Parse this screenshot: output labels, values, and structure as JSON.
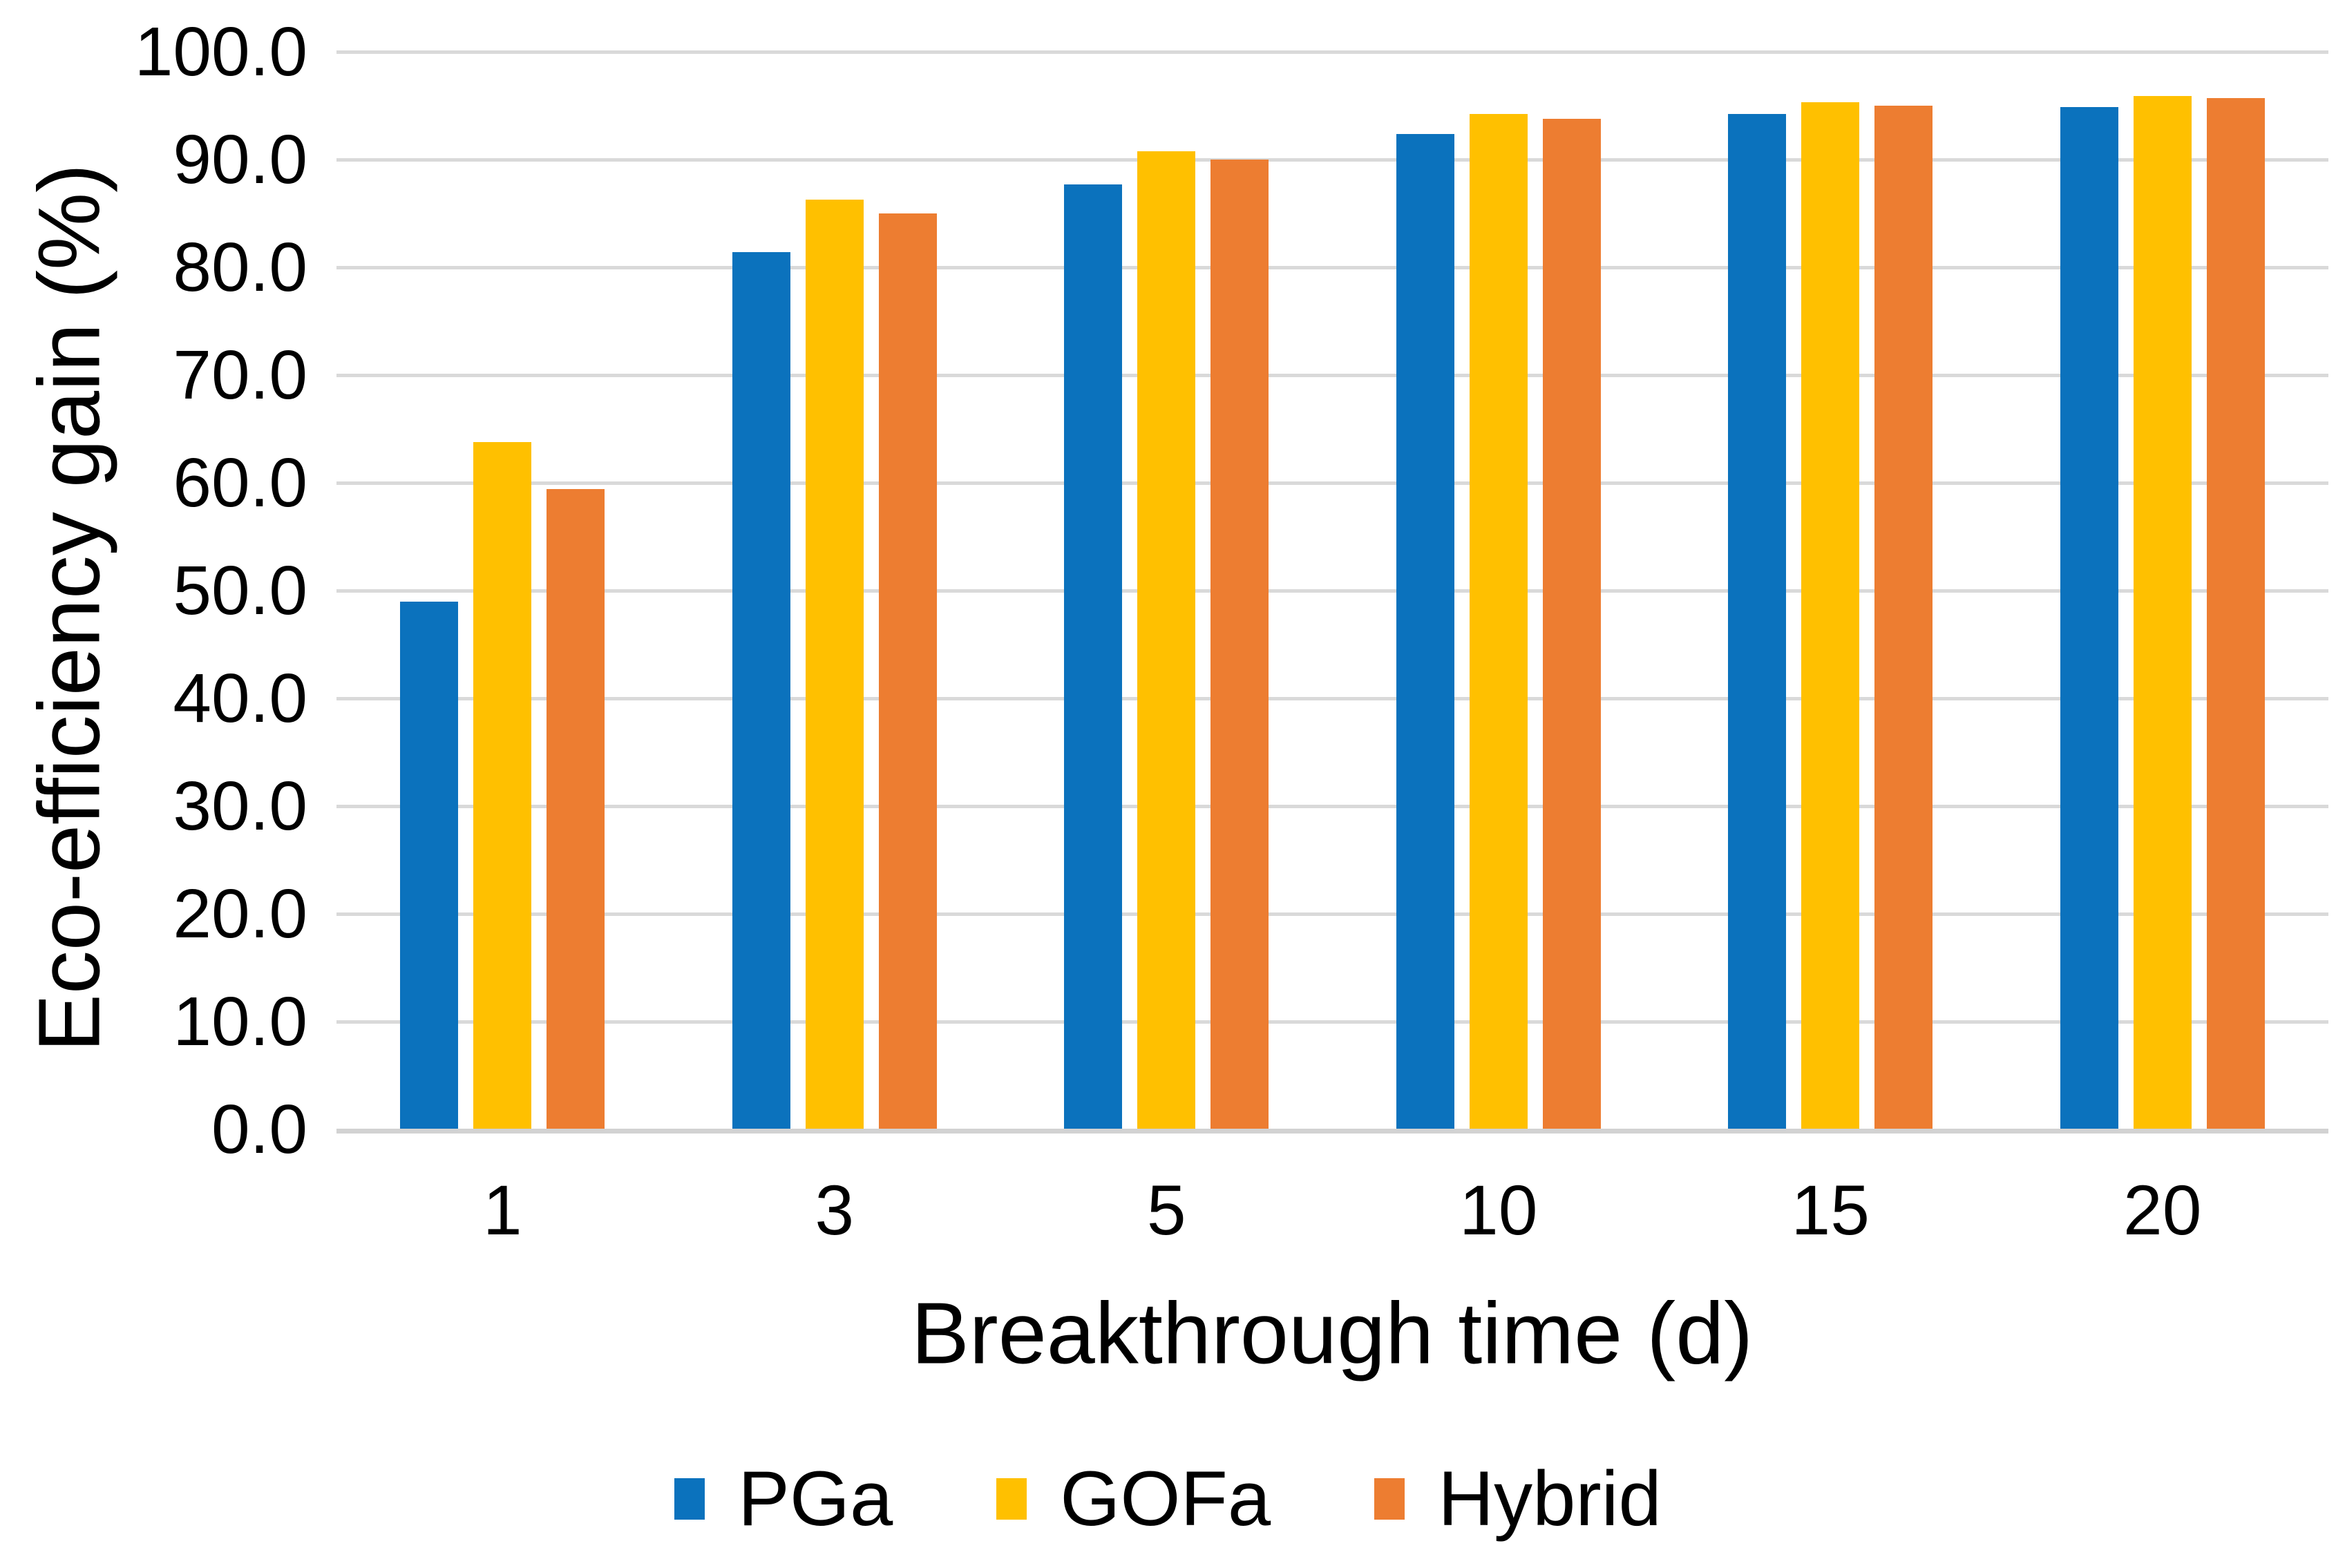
{
  "chart_data": {
    "type": "bar",
    "title": "",
    "xlabel": "Breakthrough time (d)",
    "ylabel": "Eco-efficiency gain (%)",
    "categories": [
      "1",
      "3",
      "5",
      "10",
      "15",
      "20"
    ],
    "series": [
      {
        "name": "PGa",
        "color": "#0b72bd",
        "values": [
          49.0,
          81.4,
          87.7,
          92.4,
          94.2,
          94.9
        ]
      },
      {
        "name": "GOFa",
        "color": "#ffc000",
        "values": [
          63.8,
          86.3,
          90.8,
          94.2,
          95.3,
          95.9
        ]
      },
      {
        "name": "Hybrid",
        "color": "#ed7d31",
        "values": [
          59.4,
          85.0,
          90.0,
          93.8,
          95.0,
          95.7
        ]
      }
    ],
    "ylim": [
      0,
      100
    ],
    "ytick_step": 10,
    "ytick_decimals": 1,
    "grid": true,
    "legend_position": "bottom",
    "colors": {
      "gridline": "#d9d9d9",
      "axis_line": "#d2d2d2",
      "text": "#000000",
      "background": "#ffffff"
    }
  }
}
